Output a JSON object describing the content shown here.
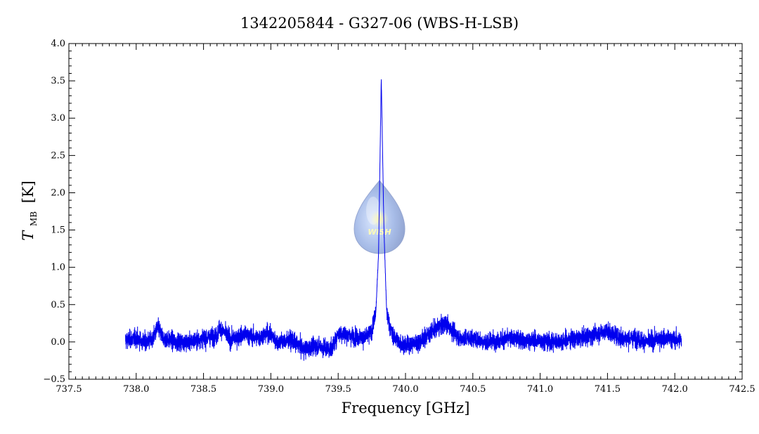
{
  "chart_data": {
    "type": "line",
    "title": "1342205844 - G327-06 (WBS-H-LSB)",
    "xlabel": "Frequency [GHz]",
    "ylabel_main": "T",
    "ylabel_sub": "MB",
    "ylabel_unit": "[K]",
    "xlim": [
      737.5,
      742.5
    ],
    "ylim": [
      -0.5,
      4.0
    ],
    "x_ticks": [
      "737.5",
      "738.0",
      "738.5",
      "739.0",
      "739.5",
      "740.0",
      "740.5",
      "741.0",
      "741.5",
      "742.0",
      "742.5"
    ],
    "y_ticks": [
      "−0.5",
      "0.0",
      "0.5",
      "1.0",
      "1.5",
      "2.0",
      "2.5",
      "3.0",
      "3.5",
      "4.0"
    ],
    "grid": false,
    "series": [
      {
        "color": "#0000ee",
        "noise_rms_K": 0.06,
        "x": [
          737.92,
          738.0,
          738.05,
          738.12,
          738.16,
          738.2,
          738.3,
          738.4,
          738.5,
          738.6,
          738.62,
          738.7,
          738.8,
          738.9,
          738.98,
          739.05,
          739.15,
          739.25,
          739.35,
          739.45,
          739.5,
          739.6,
          739.7,
          739.75,
          739.78,
          739.8,
          739.82,
          739.84,
          739.86,
          739.9,
          739.95,
          740.0,
          740.1,
          740.2,
          740.3,
          740.4,
          740.5,
          740.6,
          740.7,
          740.8,
          740.9,
          741.0,
          741.1,
          741.2,
          741.3,
          741.4,
          741.5,
          741.6,
          741.7,
          741.8,
          741.9,
          742.05
        ],
        "y": [
          0.02,
          0.05,
          0.0,
          0.02,
          0.2,
          0.05,
          0.0,
          0.0,
          0.05,
          0.08,
          0.2,
          0.03,
          0.1,
          0.05,
          0.12,
          0.0,
          0.02,
          -0.1,
          -0.05,
          -0.1,
          0.12,
          0.08,
          0.05,
          0.15,
          0.4,
          1.2,
          3.55,
          1.5,
          0.4,
          0.1,
          0.0,
          -0.05,
          0.0,
          0.15,
          0.25,
          0.05,
          0.05,
          0.0,
          0.03,
          0.05,
          0.02,
          0.02,
          0.0,
          0.03,
          0.05,
          0.1,
          0.15,
          0.05,
          0.05,
          0.0,
          0.05,
          0.02
        ]
      }
    ]
  }
}
